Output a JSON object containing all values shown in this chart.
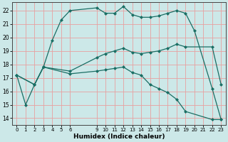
{
  "xlabel": "Humidex (Indice chaleur)",
  "bg_color": "#cce8e8",
  "grid_color": "#e8a0a0",
  "line_color": "#1a6e64",
  "xlim": [
    -0.5,
    23.5
  ],
  "ylim": [
    13.5,
    22.6
  ],
  "xticks": [
    0,
    1,
    2,
    3,
    4,
    5,
    6,
    9,
    10,
    11,
    12,
    13,
    14,
    15,
    16,
    17,
    18,
    19,
    20,
    21,
    22,
    23
  ],
  "yticks": [
    14,
    15,
    16,
    17,
    18,
    19,
    20,
    21,
    22
  ],
  "lines": [
    {
      "x": [
        0,
        1,
        2,
        3,
        4,
        5,
        6,
        9,
        10,
        11,
        12,
        13,
        14,
        15,
        16,
        17,
        18,
        19,
        20,
        22,
        23
      ],
      "y": [
        17.2,
        15.0,
        16.5,
        17.8,
        19.8,
        21.3,
        22.0,
        22.2,
        21.8,
        21.8,
        22.3,
        21.7,
        21.5,
        21.5,
        21.6,
        21.8,
        22.0,
        21.8,
        20.5,
        16.2,
        13.9
      ]
    },
    {
      "x": [
        0,
        2,
        3,
        6,
        9,
        10,
        11,
        12,
        13,
        14,
        15,
        16,
        17,
        18,
        19,
        22,
        23
      ],
      "y": [
        17.2,
        16.5,
        17.8,
        17.5,
        18.5,
        18.8,
        19.0,
        19.2,
        18.9,
        18.8,
        18.9,
        19.0,
        19.2,
        19.5,
        19.3,
        19.3,
        16.5
      ]
    },
    {
      "x": [
        0,
        2,
        3,
        6,
        9,
        10,
        11,
        12,
        13,
        14,
        15,
        16,
        17,
        18,
        19,
        22,
        23
      ],
      "y": [
        17.2,
        16.5,
        17.8,
        17.3,
        17.5,
        17.6,
        17.7,
        17.8,
        17.4,
        17.2,
        16.5,
        16.2,
        15.9,
        15.4,
        14.5,
        13.9,
        13.9
      ]
    }
  ]
}
